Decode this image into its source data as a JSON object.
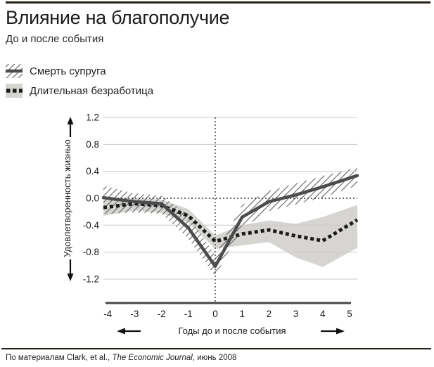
{
  "header": {
    "title": "Влияние на благополучие",
    "subtitle": "До и после события"
  },
  "legend": {
    "items": [
      {
        "label": "Смерть супруга",
        "swatch": "hatched-band-with-solid-line"
      },
      {
        "label": "Длительная безработица",
        "swatch": "gray-band-with-dotted-line"
      }
    ]
  },
  "chart_data": {
    "type": "line",
    "title": "Влияние на благополучие",
    "subtitle": "До и после события",
    "xlabel": "Годы до и после события",
    "ylabel": "Удовлетворенность жизнью",
    "x": [
      -4,
      -3,
      -2,
      -1,
      0,
      1,
      2,
      3,
      4,
      5
    ],
    "x_tick_labels": [
      "-4",
      "-3",
      "-2",
      "-1",
      "0",
      "1",
      "2",
      "3",
      "4",
      "5"
    ],
    "y_ticks": [
      1.2,
      0.8,
      0.4,
      0,
      -0.4,
      -0.8,
      -1.2
    ],
    "y_tick_labels": [
      "1.2",
      "0.8",
      "0.4",
      "0.0",
      "-0.4",
      "-0.8",
      "-1.2"
    ],
    "ylim": [
      -1.2,
      1.2
    ],
    "grid": "horizontal",
    "legend_position": "top-left",
    "reference_lines": {
      "vertical_at_x": 0,
      "horizontal_at_y": 0,
      "style": "dotted"
    },
    "series": [
      {
        "name": "Смерть супруга",
        "line_style": "solid",
        "band_style": "hatched",
        "values": [
          0,
          -0.05,
          -0.08,
          -0.44,
          -1.01,
          -0.28,
          -0.05,
          0.05,
          0.17,
          0.3
        ],
        "band_upper": [
          0.17,
          0.07,
          0.04,
          -0.25,
          -0.85,
          -0.1,
          0.11,
          0.22,
          0.33,
          0.43
        ],
        "band_lower": [
          -0.23,
          -0.21,
          -0.23,
          -0.6,
          -1.16,
          -0.44,
          -0.19,
          -0.09,
          0.01,
          0.15
        ]
      },
      {
        "name": "Длительная безработица",
        "line_style": "dotted",
        "band_style": "solid-gray",
        "values": [
          -0.13,
          -0.08,
          -0.11,
          -0.26,
          -0.64,
          -0.53,
          -0.47,
          -0.56,
          -0.63,
          -0.39
        ],
        "band_upper": [
          -0.03,
          0,
          -0.02,
          -0.16,
          -0.55,
          -0.4,
          -0.33,
          -0.38,
          -0.28,
          -0.14
        ],
        "band_lower": [
          -0.25,
          -0.18,
          -0.22,
          -0.36,
          -0.75,
          -0.7,
          -0.65,
          -0.88,
          -1.02,
          -0.8
        ]
      }
    ]
  },
  "footnote": {
    "prefix": "По материалам Clark, et al., ",
    "source_italic": "The Economic Journal",
    "suffix": ", июнь 2008"
  },
  "colors": {
    "rule": "#262019",
    "text": "#1a1a1a",
    "solid_line": "#4c4c4c",
    "dotted_line": "#1b1b1b",
    "gray_band": "#d7d5d2",
    "hatch_line": "#616161",
    "gridline": "#c9c9c9",
    "zero_line": "#3c3c3c",
    "axis_line": "#474747",
    "arrow": "#111111"
  }
}
